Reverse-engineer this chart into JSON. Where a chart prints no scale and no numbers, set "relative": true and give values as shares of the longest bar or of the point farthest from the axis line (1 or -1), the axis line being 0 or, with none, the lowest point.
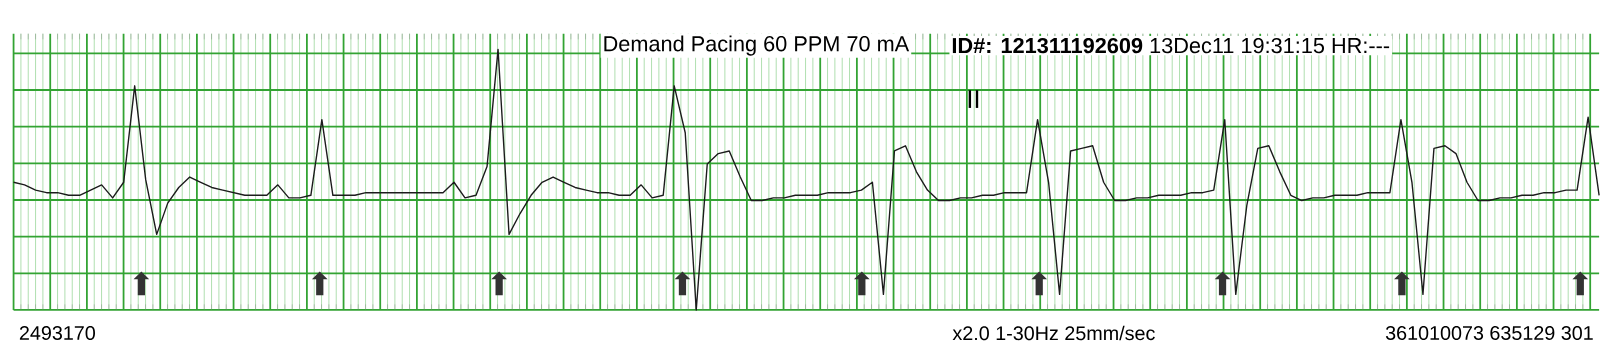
{
  "chart_data": {
    "type": "line",
    "title": "Demand Pacing 60 PPM 70 mA",
    "subtitle": "**ID#: 121311192609** 13Dec11 19:31:15 HR:---",
    "annotations": [
      "II",
      "2493170",
      "x2.0 1-30Hz 25mm/sec",
      "361010073 635129 301",
      "⬆",
      "⬆",
      "⬆",
      "⬆",
      "⬆",
      "⬆",
      "⬆",
      "⬆",
      "⬆"
    ],
    "relative": true,
    "grid": true,
    "line_style": "solid",
    "categories": [
      null,
      null,
      null,
      null,
      null,
      null,
      null,
      null,
      null,
      null,
      null,
      null,
      null,
      null,
      null,
      null,
      null,
      null,
      null,
      null,
      null,
      null,
      null,
      null,
      null,
      null,
      null,
      null,
      null,
      null,
      null,
      null,
      null,
      null,
      null,
      null,
      null,
      null,
      null,
      null,
      null,
      null,
      null,
      null,
      null,
      null,
      null,
      null,
      null,
      null,
      null,
      null,
      null,
      null,
      null,
      null,
      null,
      null,
      null,
      null,
      null,
      null,
      null,
      null,
      null,
      null,
      null,
      null,
      null,
      null,
      null,
      null,
      null,
      null,
      null,
      null,
      null,
      null,
      null,
      null,
      null,
      null,
      null,
      null,
      null,
      null,
      null,
      null,
      null,
      null,
      null,
      null,
      null,
      null,
      null,
      null,
      null,
      null,
      null,
      null,
      null,
      null,
      null,
      null,
      null,
      null,
      null,
      null,
      null,
      null,
      null,
      null,
      null,
      null,
      null,
      null,
      null,
      null,
      null,
      null,
      null,
      null,
      null,
      null,
      null,
      null,
      null,
      null,
      null,
      null,
      null,
      null,
      null,
      null,
      null,
      null,
      null,
      null,
      null,
      null,
      null,
      null,
      null,
      null,
      null
    ],
    "series": [
      {
        "color": "#1c1c1c",
        "values": [
          0.49,
          0.48,
          0.46,
          0.45,
          0.45,
          0.44,
          0.44,
          0.46,
          0.48,
          0.43,
          0.49,
          0.86,
          0.5,
          0.29,
          0.41,
          0.47,
          0.51,
          0.49,
          0.47,
          0.46,
          0.45,
          0.44,
          0.44,
          0.44,
          0.48,
          0.43,
          0.43,
          0.44,
          0.73,
          0.44,
          0.44,
          0.44,
          0.45,
          0.45,
          0.45,
          0.45,
          0.45,
          0.45,
          0.45,
          0.45,
          0.49,
          0.43,
          0.44,
          0.55,
          1,
          0.29,
          0.37,
          0.44,
          0.49,
          0.51,
          0.49,
          0.47,
          0.46,
          0.45,
          0.45,
          0.44,
          0.44,
          0.48,
          0.43,
          0.44,
          0.86,
          0.68,
          0,
          0.56,
          0.6,
          0.61,
          0.51,
          0.42,
          0.42,
          0.43,
          0.43,
          0.44,
          0.44,
          0.44,
          0.45,
          0.45,
          0.45,
          0.46,
          0.49,
          0.06,
          0.61,
          0.63,
          0.53,
          0.46,
          0.42,
          0.42,
          0.43,
          0.43,
          0.44,
          0.44,
          0.45,
          0.45,
          0.45,
          0.73,
          0.49,
          0.06,
          0.61,
          0.62,
          0.63,
          0.49,
          0.42,
          0.42,
          0.43,
          0.43,
          0.44,
          0.44,
          0.44,
          0.45,
          0.45,
          0.46,
          0.73,
          0.06,
          0.4,
          0.62,
          0.63,
          0.53,
          0.44,
          0.42,
          0.43,
          0.43,
          0.44,
          0.44,
          0.44,
          0.45,
          0.45,
          0.45,
          0.73,
          0.49,
          0.06,
          0.62,
          0.63,
          0.6,
          0.49,
          0.42,
          0.42,
          0.43,
          0.43,
          0.44,
          0.44,
          0.45,
          0.45,
          0.46,
          0.46,
          0.74,
          0.44
        ]
      }
    ]
  }
}
